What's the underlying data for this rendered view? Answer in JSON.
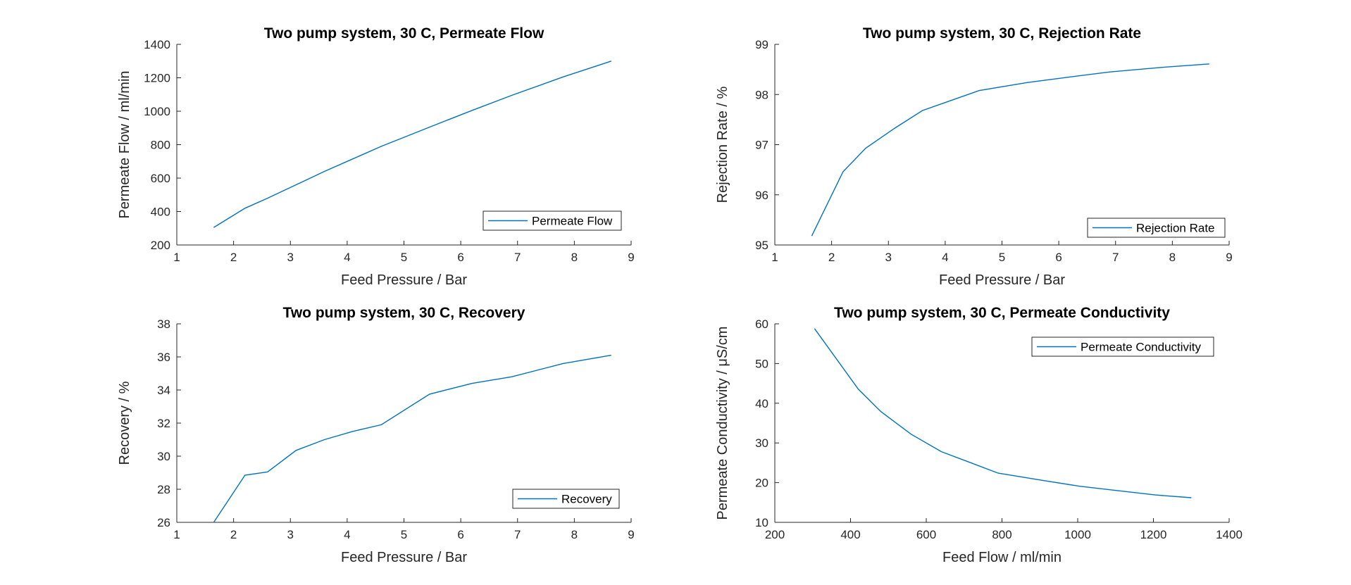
{
  "colors": {
    "series": "#0072BD",
    "axis": "#262626"
  },
  "chart_data": [
    {
      "type": "line",
      "title": "Two pump system, 30 C, Permeate Flow",
      "xlabel": "Feed Pressure / Bar",
      "ylabel": "Permeate Flow / ml/min",
      "xlim": [
        1,
        9
      ],
      "ylim": [
        200,
        1400
      ],
      "xticks": [
        1,
        2,
        3,
        4,
        5,
        6,
        7,
        8,
        9
      ],
      "yticks": [
        200,
        400,
        600,
        800,
        1000,
        1200,
        1400
      ],
      "legend_position": "bottom-right",
      "series": [
        {
          "name": "Permeate Flow",
          "x": [
            1.65,
            2.2,
            2.6,
            3.1,
            3.6,
            4.1,
            4.6,
            5.45,
            6.2,
            6.9,
            7.8,
            8.65
          ],
          "y": [
            305,
            420,
            480,
            560,
            640,
            715,
            790,
            905,
            1005,
            1095,
            1205,
            1300
          ]
        }
      ]
    },
    {
      "type": "line",
      "title": "Two pump system, 30 C, Rejection Rate",
      "xlabel": "Feed Pressure / Bar",
      "ylabel": "Rejection Rate / %",
      "xlim": [
        1,
        9
      ],
      "ylim": [
        95,
        99
      ],
      "xticks": [
        1,
        2,
        3,
        4,
        5,
        6,
        7,
        8,
        9
      ],
      "yticks": [
        95,
        96,
        97,
        98,
        99
      ],
      "legend_position": "bottom-right",
      "series": [
        {
          "name": "Rejection Rate",
          "x": [
            1.65,
            2.2,
            2.6,
            3.1,
            3.6,
            4.1,
            4.6,
            5.45,
            6.2,
            6.9,
            7.8,
            8.65
          ],
          "y": [
            95.18,
            96.46,
            96.93,
            97.32,
            97.68,
            97.88,
            98.08,
            98.24,
            98.35,
            98.45,
            98.54,
            98.61
          ]
        }
      ]
    },
    {
      "type": "line",
      "title": "Two pump system, 30 C, Recovery",
      "xlabel": "Feed Pressure / Bar",
      "ylabel": "Recovery / %",
      "xlim": [
        1,
        9
      ],
      "ylim": [
        26,
        38
      ],
      "xticks": [
        1,
        2,
        3,
        4,
        5,
        6,
        7,
        8,
        9
      ],
      "yticks": [
        26,
        28,
        30,
        32,
        34,
        36,
        38
      ],
      "legend_position": "bottom-right",
      "series": [
        {
          "name": "Recovery",
          "x": [
            1.65,
            2.2,
            2.6,
            3.1,
            3.6,
            4.1,
            4.6,
            5.45,
            6.2,
            6.9,
            7.8,
            8.65
          ],
          "y": [
            26.0,
            28.85,
            29.05,
            30.35,
            31.0,
            31.5,
            31.9,
            33.75,
            34.4,
            34.8,
            35.6,
            36.1
          ]
        }
      ]
    },
    {
      "type": "line",
      "title": "Two pump system, 30 C, Permeate Conductivity",
      "xlabel": "Feed Flow / ml/min",
      "ylabel": "Permeate Conductivity / μS/cm",
      "xlim": [
        200,
        1400
      ],
      "ylim": [
        10,
        60
      ],
      "xticks": [
        200,
        400,
        600,
        800,
        1000,
        1200,
        1400
      ],
      "yticks": [
        10,
        20,
        30,
        40,
        50,
        60
      ],
      "legend_position": "top-right",
      "series": [
        {
          "name": "Permeate Conductivity",
          "x": [
            305,
            420,
            480,
            560,
            640,
            715,
            790,
            905,
            1005,
            1095,
            1205,
            1300
          ],
          "y": [
            58.8,
            43.6,
            37.9,
            32.2,
            27.8,
            25.1,
            22.4,
            20.6,
            19.1,
            18.1,
            16.9,
            16.2
          ]
        }
      ]
    }
  ]
}
